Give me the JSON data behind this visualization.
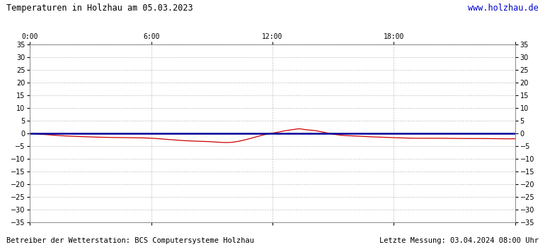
{
  "title": "Temperaturen in Holzhau am 05.03.2023",
  "url_text": "www.holzhau.de",
  "footer_left": "Betreiber der Wetterstation: BCS Computersysteme Holzhau",
  "footer_right": "Letzte Messung: 03.04.2024 08:00 Uhr",
  "x_ticks": [
    0,
    6,
    12,
    18,
    24
  ],
  "x_tick_labels": [
    "0:00",
    "6:00",
    "12:00",
    "18:00",
    ""
  ],
  "y_min": -35,
  "y_max": 35,
  "background_color": "#ffffff",
  "grid_color": "#aaaaaa",
  "line1_color": "#cc0000",
  "line2_color": "#000099",
  "title_color": "#000000",
  "url_color": "#0000cc",
  "footer_color": "#000000",
  "red_hours": [
    0.0,
    0.5,
    1.0,
    1.5,
    2.0,
    3.0,
    4.0,
    5.0,
    6.0,
    7.0,
    8.0,
    9.0,
    10.0,
    10.5,
    11.0,
    11.5,
    12.0,
    12.3,
    12.6,
    13.0,
    13.3,
    13.6,
    14.0,
    14.5,
    15.0,
    15.5,
    16.0,
    16.5,
    17.0,
    17.5,
    18.0,
    18.5,
    19.0,
    20.0,
    21.0,
    22.0,
    23.0,
    24.0
  ],
  "red_vals": [
    0.0,
    -0.3,
    -0.6,
    -0.9,
    -1.1,
    -1.4,
    -1.6,
    -1.7,
    -1.9,
    -2.5,
    -3.0,
    -3.3,
    -3.5,
    -2.8,
    -1.8,
    -0.7,
    0.1,
    0.5,
    1.0,
    1.5,
    1.8,
    1.5,
    1.2,
    0.5,
    -0.3,
    -0.8,
    -1.0,
    -1.2,
    -1.4,
    -1.5,
    -1.7,
    -1.8,
    -1.9,
    -1.9,
    -2.0,
    -2.0,
    -2.1,
    -2.1
  ],
  "blue_val": 0.0
}
